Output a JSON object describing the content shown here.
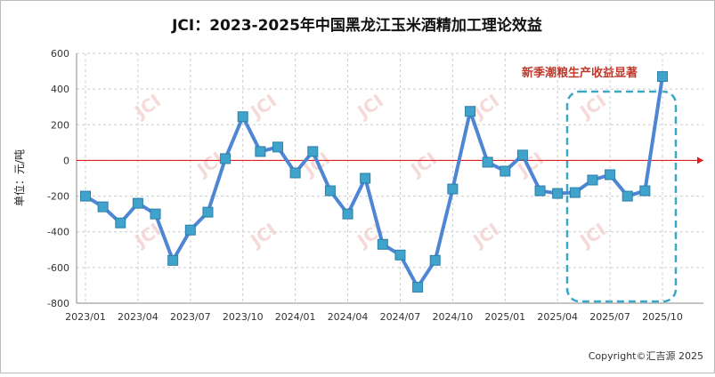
{
  "chart_data": {
    "type": "line",
    "title": "JCI：2023-2025年中国黑龙江玉米酒精加工理论效益",
    "y_label": "单位：元/吨",
    "annotation": "新季潮粮生产收益显著",
    "watermark": "JCI",
    "copyright": "Copyright©汇吉源 2025",
    "categories": [
      "2023/01",
      null,
      null,
      "2023/04",
      null,
      null,
      "2023/07",
      null,
      null,
      "2023/10",
      null,
      null,
      "2024/01",
      null,
      null,
      "2024/04",
      null,
      null,
      "2024/07",
      null,
      null,
      "2024/10",
      null,
      null,
      "2025/01",
      null,
      null,
      "2025/04",
      null,
      null,
      "2025/07",
      null,
      null,
      "2025/10"
    ],
    "series": [
      {
        "name": "理论效益",
        "color": "#4f86d4",
        "marker_color": "#3fa3cc",
        "values": [
          -200,
          -260,
          -350,
          -240,
          -300,
          -560,
          -390,
          -290,
          10,
          245,
          50,
          75,
          -70,
          50,
          -170,
          -300,
          -100,
          -470,
          -530,
          -710,
          -560,
          -160,
          275,
          -10,
          -60,
          30,
          -170,
          -185,
          -180,
          -110,
          -80,
          -200,
          -170,
          470
        ]
      }
    ],
    "ylim": [
      -800,
      600
    ],
    "yticks": [
      -800,
      -600,
      -400,
      -200,
      0,
      200,
      400,
      600
    ],
    "zero_line_color": "#e02020",
    "grid": true
  }
}
